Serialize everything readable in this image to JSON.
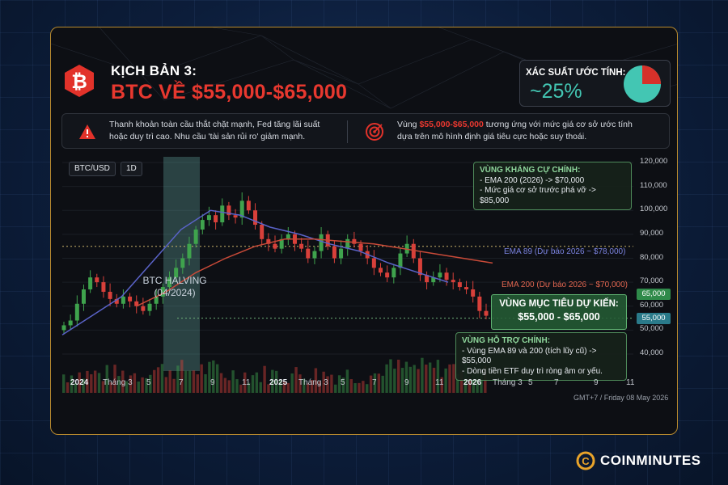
{
  "header": {
    "subtitle": "KỊCH BẢN 3:",
    "title": "BTC VỀ $55,000-$65,000",
    "probability_label": "XÁC SUẤT ƯỚC TÍNH:",
    "probability_value": "~25%",
    "probability_fraction": 0.25
  },
  "info": {
    "left_line1": "Thanh khoản toàn cầu thắt chặt mạnh, Fed tăng lãi suất",
    "left_line2": "hoặc duy trì cao. Nhu cầu 'tài sản rủi ro' giảm mạnh.",
    "right_prefix": "Vùng ",
    "right_highlight": "$55,000-$65,000",
    "right_suffix": " tương ứng với mức giá cơ sở ước tính",
    "right_line2": "dựa trên mô hình định giá tiêu cực hoặc suy thoái."
  },
  "chart_controls": {
    "symbol": "BTC/USD",
    "interval": "1D"
  },
  "resistance": {
    "title": "VÙNG KHÁNG CỰ CHÍNH:",
    "line1": "- EMA 200 (2026) -> $70,000",
    "line2": "- Mức giá cơ sở trước phá vỡ -> $85,000"
  },
  "support": {
    "title": "VÙNG HỖ TRỢ CHÍNH:",
    "line1": "- Vùng EMA 89 và 200 (tích lũy cũ) -> $55,000",
    "line2": "- Dòng tiền ETF duy trì ròng âm or yếu."
  },
  "target": {
    "title": "VÙNG MỤC TIÊU DỰ KIẾN:",
    "range": "$55,000 - $65,000"
  },
  "halving": {
    "line1": "BTC HALVING",
    "line2": "(04/2024)"
  },
  "ema89_label": "EMA 89 (Dự báo 2026 ~ $78,000)",
  "ema200_label": "EMA 200 (Dự báo 2026 ~ $70,000)",
  "footer_date": "GMT+7 / Friday 08 May 2026",
  "brand": "COINMINUTES",
  "colors": {
    "up": "#3fa34d",
    "down": "#d8403a",
    "ema89": "#5a63c8",
    "ema200": "#c94a38",
    "accent_red": "#e8382f",
    "teal": "#43c6b3"
  },
  "chart_data": {
    "type": "candlestick",
    "y_axis_ticks": [
      "120,000",
      "110,000",
      "100,000",
      "90,000",
      "80,000",
      "70,000",
      "65,000",
      "60,000",
      "55,000",
      "50,000",
      "40,000"
    ],
    "y_highlight_badges": [
      "65,000",
      "55,000"
    ],
    "ylim": [
      40000,
      120000
    ],
    "x_axis_ticks": [
      "2024",
      "Tháng 3",
      "5",
      "7",
      "9",
      "11",
      "2025",
      "Tháng 3",
      "5",
      "7",
      "9",
      "11",
      "2026",
      "Tháng 3",
      "5",
      "7",
      "9",
      "11"
    ],
    "x_bold_ticks": [
      "2024",
      "2025",
      "2026"
    ],
    "reference_lines": [
      85000,
      55000
    ],
    "close_series_approx": [
      52000,
      54000,
      61000,
      67000,
      72000,
      70000,
      66000,
      63000,
      61000,
      64000,
      62000,
      60000,
      58000,
      61000,
      64000,
      68000,
      72000,
      76000,
      80000,
      86000,
      92000,
      96000,
      98000,
      95000,
      102000,
      98000,
      97000,
      104000,
      100000,
      94000,
      88000,
      86000,
      84000,
      88000,
      90000,
      86000,
      84000,
      80000,
      83000,
      90000,
      85000,
      80000,
      84000,
      88000,
      86000,
      83000,
      80000,
      76000,
      74000,
      72000,
      76000,
      82000,
      86000,
      80000,
      73000,
      70000,
      72000,
      74000,
      71000,
      70000,
      68000,
      67000,
      64000,
      58000,
      56000
    ],
    "ema89_points": [
      [
        0,
        48000
      ],
      [
        8,
        56000
      ],
      [
        16,
        64000
      ],
      [
        24,
        78000
      ],
      [
        32,
        92000
      ],
      [
        40,
        100000
      ],
      [
        48,
        98000
      ],
      [
        56,
        93000
      ],
      [
        64,
        90000
      ],
      [
        72,
        86000
      ],
      [
        80,
        83000
      ],
      [
        88,
        78000
      ],
      [
        96,
        74000
      ],
      [
        104,
        70000
      ]
    ],
    "ema200_points": [
      [
        20,
        60000
      ],
      [
        28,
        66000
      ],
      [
        36,
        74000
      ],
      [
        44,
        80000
      ],
      [
        52,
        85000
      ],
      [
        60,
        88000
      ],
      [
        68,
        88000
      ],
      [
        76,
        87000
      ],
      [
        84,
        86000
      ],
      [
        92,
        84000
      ],
      [
        100,
        82000
      ],
      [
        108,
        80000
      ],
      [
        116,
        78000
      ]
    ]
  }
}
